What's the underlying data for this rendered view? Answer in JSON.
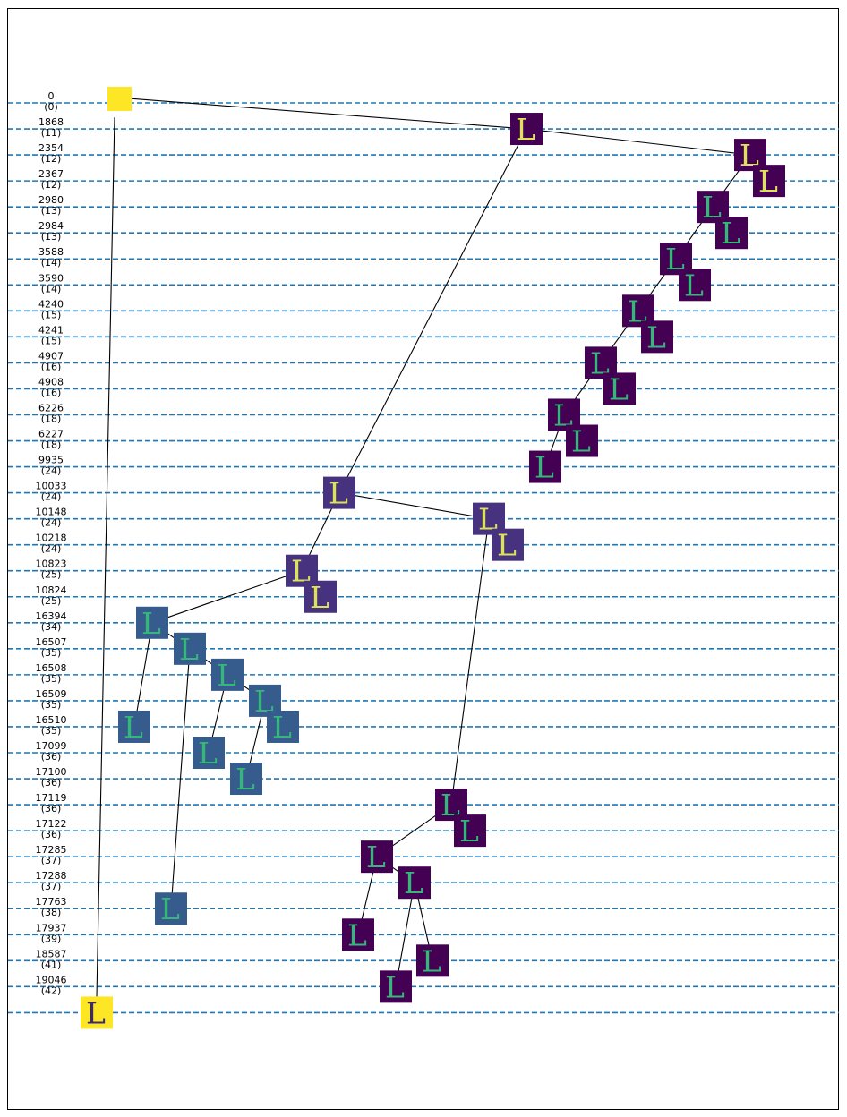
{
  "levels": [
    {
      "value": "0",
      "sub": "(0)"
    },
    {
      "value": "1868",
      "sub": "(11)"
    },
    {
      "value": "2354",
      "sub": "(12)"
    },
    {
      "value": "2367",
      "sub": "(12)"
    },
    {
      "value": "2980",
      "sub": "(13)"
    },
    {
      "value": "2984",
      "sub": "(13)"
    },
    {
      "value": "3588",
      "sub": "(14)"
    },
    {
      "value": "3590",
      "sub": "(14)"
    },
    {
      "value": "4240",
      "sub": "(15)"
    },
    {
      "value": "4241",
      "sub": "(15)"
    },
    {
      "value": "4907",
      "sub": "(16)"
    },
    {
      "value": "4908",
      "sub": "(16)"
    },
    {
      "value": "6226",
      "sub": "(18)"
    },
    {
      "value": "6227",
      "sub": "(18)"
    },
    {
      "value": "9935",
      "sub": "(24)"
    },
    {
      "value": "10033",
      "sub": "(24)"
    },
    {
      "value": "10148",
      "sub": "(24)"
    },
    {
      "value": "10218",
      "sub": "(24)"
    },
    {
      "value": "10823",
      "sub": "(25)"
    },
    {
      "value": "10824",
      "sub": "(25)"
    },
    {
      "value": "16394",
      "sub": "(34)"
    },
    {
      "value": "16507",
      "sub": "(35)"
    },
    {
      "value": "16508",
      "sub": "(35)"
    },
    {
      "value": "16509",
      "sub": "(35)"
    },
    {
      "value": "16510",
      "sub": "(35)"
    },
    {
      "value": "17099",
      "sub": "(36)"
    },
    {
      "value": "17100",
      "sub": "(36)"
    },
    {
      "value": "17119",
      "sub": "(36)"
    },
    {
      "value": "17122",
      "sub": "(36)"
    },
    {
      "value": "17285",
      "sub": "(37)"
    },
    {
      "value": "17288",
      "sub": "(37)"
    },
    {
      "value": "17763",
      "sub": "(38)"
    },
    {
      "value": "17937",
      "sub": "(39)"
    },
    {
      "value": "18587",
      "sub": "(41)"
    },
    {
      "value": "19046",
      "sub": "(42)"
    }
  ],
  "node_glyph": "L",
  "colors": {
    "gridline": "#1f77b4",
    "edge": "#000000",
    "root": "#fde725",
    "final_bg": "#fde725",
    "final_glyph": "#3b2a70",
    "levels_bg": [
      "#440154",
      "#46327e",
      "#365c8d"
    ],
    "glyph_light": "#dce35a",
    "glyph_teal": "#35b779"
  }
}
